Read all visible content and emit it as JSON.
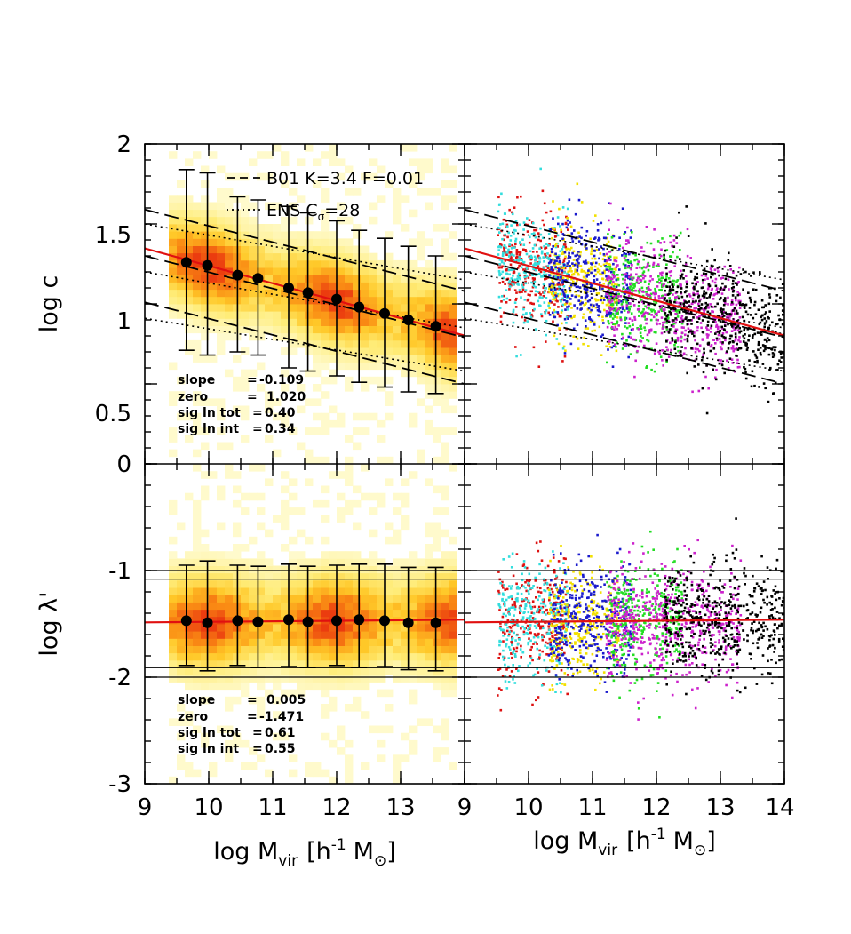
{
  "chart_data": [
    {
      "type": "scatter",
      "panel": "top-left",
      "description_kind": "2D density with binned means",
      "ylabel": "log c",
      "xlim": [
        9,
        14
      ],
      "ylim": [
        0,
        2
      ],
      "x_ticks": [
        "9",
        "10",
        "11",
        "12",
        "13"
      ],
      "y_ticks": [
        "0",
        "0.5",
        "1",
        "1.5",
        "2"
      ],
      "legend": [
        {
          "style": "dashed",
          "label": "B01 K=3.4 F=0.01"
        },
        {
          "style": "dotted",
          "label": "ENS C",
          "sub": "σ",
          "suffix": "=28"
        }
      ],
      "annotations": [
        {
          "label": "slope",
          "eq": "=",
          "value": "-0.109"
        },
        {
          "label": "zero",
          "eq": "=",
          "value": "1.020"
        },
        {
          "label": "sig ln tot",
          "eq": "=",
          "value": "0.40"
        },
        {
          "label": "sig ln int",
          "eq": "=",
          "value": "0.34"
        }
      ],
      "fit": {
        "slope": -0.109,
        "zero": 1.02,
        "pivot": 12
      },
      "binned_means": {
        "x": [
          9.65,
          9.98,
          10.45,
          10.77,
          11.25,
          11.55,
          12.0,
          12.35,
          12.75,
          13.12,
          13.55
        ],
        "y": [
          1.26,
          1.24,
          1.18,
          1.16,
          1.1,
          1.07,
          1.03,
          0.98,
          0.94,
          0.9,
          0.86
        ],
        "err_low": [
          0.55,
          0.56,
          0.48,
          0.48,
          0.5,
          0.49,
          0.48,
          0.47,
          0.46,
          0.45,
          0.42
        ],
        "err_high": [
          0.58,
          0.58,
          0.49,
          0.49,
          0.51,
          0.5,
          0.49,
          0.48,
          0.47,
          0.46,
          0.44
        ]
      },
      "model_lines": {
        "B01_dashed": [
          {
            "x": [
              9,
              14
            ],
            "y": [
              1.59,
              1.08
            ]
          },
          {
            "x": [
              9,
              14
            ],
            "y": [
              1.3,
              0.79
            ]
          },
          {
            "x": [
              9,
              14
            ],
            "y": [
              1.01,
              0.5
            ]
          }
        ],
        "ENS_dotted": [
          {
            "x": [
              9,
              14
            ],
            "y": [
              1.5,
              1.15
            ]
          },
          {
            "x": [
              9,
              14
            ],
            "y": [
              1.2,
              0.85
            ]
          },
          {
            "x": [
              9,
              14
            ],
            "y": [
              0.91,
              0.58
            ]
          }
        ]
      }
    },
    {
      "type": "scatter",
      "panel": "top-right",
      "description_kind": "colored scatter of halos by simulation",
      "xlim": [
        9,
        14
      ],
      "ylim": [
        0,
        2
      ],
      "x_ticks": [
        "10",
        "11",
        "12",
        "13",
        "14"
      ],
      "fit": {
        "slope": -0.109,
        "zero": 1.02,
        "pivot": 12
      },
      "series": [
        {
          "name": "red",
          "x_range": [
            9.5,
            10.6
          ]
        },
        {
          "name": "cyan",
          "x_range": [
            9.5,
            10.6
          ]
        },
        {
          "name": "yellow",
          "x_range": [
            10.3,
            11.4
          ]
        },
        {
          "name": "blue",
          "x_range": [
            10.3,
            11.6
          ]
        },
        {
          "name": "green",
          "x_range": [
            11.2,
            12.4
          ]
        },
        {
          "name": "magenta",
          "x_range": [
            11.2,
            13.3
          ]
        },
        {
          "name": "black",
          "x_range": [
            12.1,
            14
          ]
        }
      ]
    },
    {
      "type": "scatter",
      "panel": "bottom-left",
      "description_kind": "2D density with binned means",
      "ylabel": "log λ'",
      "xlabel": "log M",
      "xlabel_sub": "vir",
      "xlabel_units": "[h",
      "xlabel_sup": "-1",
      "xlabel_units2": "M",
      "xlabel_sun": "⊙",
      "xlabel_close": "]",
      "xlim": [
        9,
        14
      ],
      "ylim": [
        -3,
        0
      ],
      "x_ticks": [
        "9",
        "10",
        "11",
        "12",
        "13",
        "9"
      ],
      "y_ticks": [
        "-3",
        "-2",
        "-1"
      ],
      "annotations": [
        {
          "label": "slope",
          "eq": "=",
          "value": "0.005"
        },
        {
          "label": "zero",
          "eq": "=",
          "value": "-1.471"
        },
        {
          "label": "sig ln tot",
          "eq": "=",
          "value": "0.61"
        },
        {
          "label": "sig ln int",
          "eq": "=",
          "value": "0.55"
        }
      ],
      "fit": {
        "slope": 0.005,
        "zero": -1.471,
        "pivot": 12
      },
      "binned_means": {
        "x": [
          9.65,
          9.98,
          10.45,
          10.77,
          11.25,
          11.55,
          12.0,
          12.35,
          12.75,
          13.12,
          13.55
        ],
        "y": [
          -1.47,
          -1.49,
          -1.47,
          -1.48,
          -1.46,
          -1.48,
          -1.47,
          -1.46,
          -1.47,
          -1.49,
          -1.49
        ],
        "err_low": [
          0.42,
          0.45,
          0.42,
          0.43,
          0.44,
          0.43,
          0.42,
          0.45,
          0.43,
          0.44,
          0.45
        ],
        "err_high": [
          0.52,
          0.58,
          0.52,
          0.52,
          0.52,
          0.52,
          0.52,
          0.52,
          0.53,
          0.52,
          0.52
        ]
      },
      "horizontal_lines": [
        -1.0,
        -1.08,
        -1.91,
        -2.0
      ]
    },
    {
      "type": "scatter",
      "panel": "bottom-right",
      "description_kind": "colored scatter of halos by simulation",
      "xlabel": "log M",
      "xlabel_sub": "vir",
      "xlabel_units": "[h",
      "xlabel_sup": "-1",
      "xlabel_units2": "M",
      "xlabel_sun": "⊙",
      "xlabel_close": "]",
      "xlim": [
        9,
        14
      ],
      "ylim": [
        -3,
        0
      ],
      "x_ticks": [
        "10",
        "11",
        "12",
        "13",
        "14"
      ],
      "fit": {
        "slope": 0.005,
        "zero": -1.471,
        "pivot": 12
      },
      "horizontal_lines": [
        -1.0,
        -1.08,
        -1.91,
        -2.0
      ]
    }
  ],
  "colors": {
    "fit_line": "#e01010",
    "red": "#dd1111",
    "cyan": "#33dddd",
    "yellow": "#f2e000",
    "blue": "#1a1acc",
    "green": "#22dd22",
    "magenta": "#cc22cc",
    "black": "#000000"
  }
}
